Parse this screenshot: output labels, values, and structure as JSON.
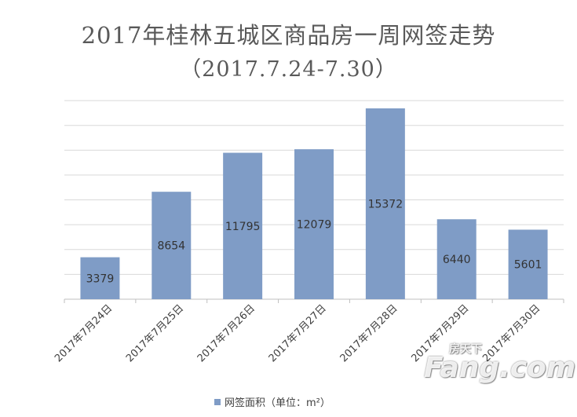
{
  "chart_data": {
    "type": "bar",
    "title": "2017年桂林五城区商品房一周网签走势",
    "subtitle": "（2017.7.24-7.30）",
    "categories": [
      "2017年7月24日",
      "2017年7月25日",
      "2017年7月26日",
      "2017年7月27日",
      "2017年7月28日",
      "2017年7月29日",
      "2017年7月30日"
    ],
    "series": [
      {
        "name": "网签面积（单位：m²）",
        "values": [
          3379,
          8654,
          11795,
          12079,
          15372,
          6440,
          5601
        ]
      }
    ],
    "ylim": [
      0,
      15372
    ],
    "grid": true,
    "legend_position": "bottom",
    "bar_color": "#7f9cc6",
    "grid_color": "#d9d9d9",
    "axis_color": "#bfbfbf"
  },
  "watermark": {
    "top_text": "房天下",
    "main_text": "Fang.com"
  }
}
